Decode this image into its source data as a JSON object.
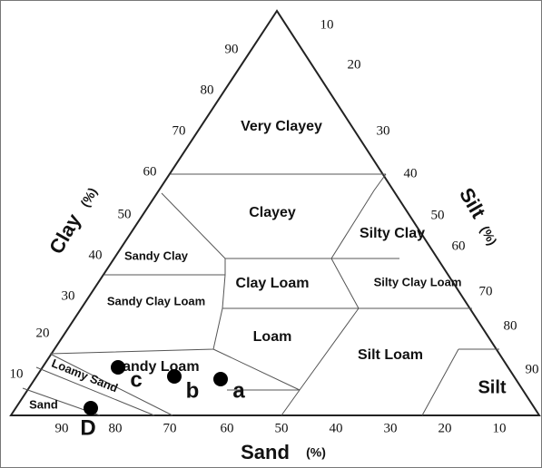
{
  "clay_axis": {
    "title": "Clay",
    "unit": "(%)",
    "ticks": [
      90,
      80,
      70,
      60,
      50,
      40,
      30,
      20,
      10
    ]
  },
  "silt_axis": {
    "title": "Silt",
    "unit": "(%)",
    "ticks": [
      10,
      20,
      30,
      40,
      50,
      60,
      70,
      80,
      90
    ]
  },
  "sand_axis": {
    "title": "Sand",
    "unit": "(%)",
    "ticks": [
      90,
      80,
      70,
      60,
      50,
      40,
      30,
      20,
      10
    ]
  },
  "regions": [
    "Very Clayey",
    "Clayey",
    "Silty Clay",
    "Sandy Clay",
    "Silty Clay Loam",
    "Clay Loam",
    "Sandy Clay Loam",
    "Loam",
    "Silt Loam",
    "Sandy Loam",
    "Silt",
    "Loamy Sand",
    "Sand"
  ],
  "samples": [
    "c",
    "b",
    "a",
    "D"
  ]
}
